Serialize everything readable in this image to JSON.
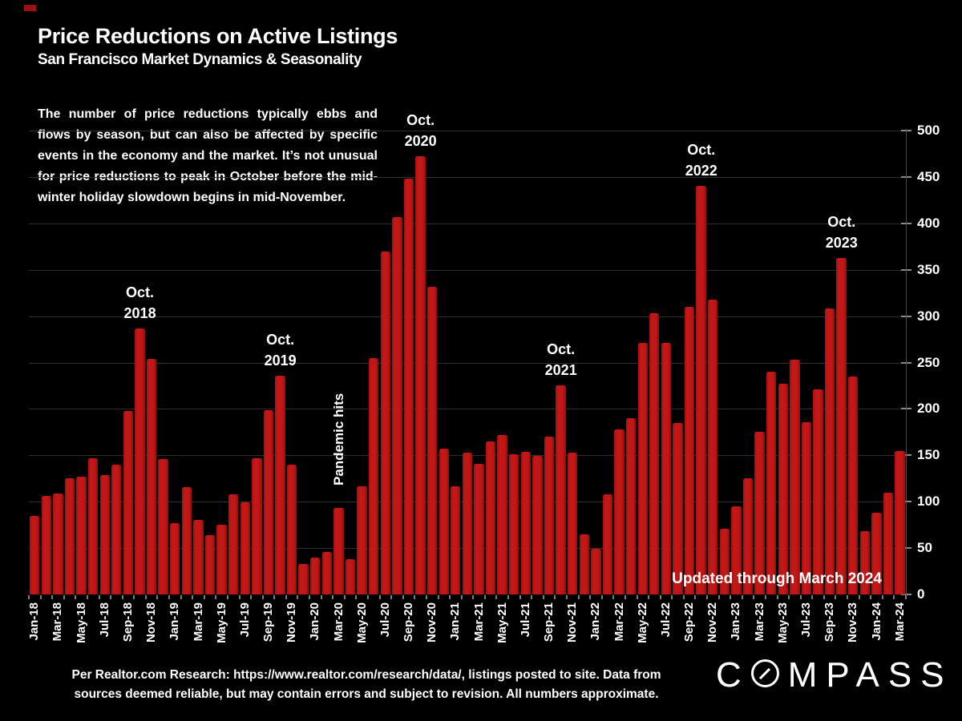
{
  "header": {
    "title": "Price Reductions on Active Listings",
    "subtitle": "San Francisco Market Dynamics & Seasonality"
  },
  "description": "The number of price reductions typically ebbs and flows by season, but can also be affected by specific events in the economy and the market. It’s not unusual for price reductions to peak in October before the mid-winter holiday slowdown begins in mid-November.",
  "chart_data": {
    "type": "bar",
    "title": "Price Reductions on Active Listings",
    "xlabel": "",
    "ylabel": "",
    "ylim": [
      0,
      500
    ],
    "yticks": [
      0,
      50,
      100,
      150,
      200,
      250,
      300,
      350,
      400,
      450,
      500
    ],
    "y_axis_side": "right",
    "grid": true,
    "xtick_every": 2,
    "bar_color": "#c01616",
    "grid_color": "#2f2f2f",
    "x": [
      "Jan-18",
      "Feb-18",
      "Mar-18",
      "Apr-18",
      "May-18",
      "Jun-18",
      "Jul-18",
      "Aug-18",
      "Sep-18",
      "Oct-18",
      "Nov-18",
      "Dec-18",
      "Jan-19",
      "Feb-19",
      "Mar-19",
      "Apr-19",
      "May-19",
      "Jun-19",
      "Jul-19",
      "Aug-19",
      "Sep-19",
      "Oct-19",
      "Nov-19",
      "Dec-19",
      "Jan-20",
      "Feb-20",
      "Mar-20",
      "Apr-20",
      "May-20",
      "Jun-20",
      "Jul-20",
      "Aug-20",
      "Sep-20",
      "Oct-20",
      "Nov-20",
      "Dec-20",
      "Jan-21",
      "Feb-21",
      "Mar-21",
      "Apr-21",
      "May-21",
      "Jun-21",
      "Jul-21",
      "Aug-21",
      "Sep-21",
      "Oct-21",
      "Nov-21",
      "Dec-21",
      "Jan-22",
      "Feb-22",
      "Mar-22",
      "Apr-22",
      "May-22",
      "Jun-22",
      "Jul-22",
      "Aug-22",
      "Sep-22",
      "Oct-22",
      "Nov-22",
      "Dec-22",
      "Jan-23",
      "Feb-23",
      "Mar-23",
      "Apr-23",
      "May-23",
      "Jun-23",
      "Jul-23",
      "Aug-23",
      "Sep-23",
      "Oct-23",
      "Nov-23",
      "Dec-23",
      "Jan-24",
      "Feb-24",
      "Mar-24"
    ],
    "values": [
      85,
      106,
      109,
      125,
      127,
      147,
      129,
      140,
      198,
      287,
      254,
      146,
      77,
      116,
      80,
      64,
      75,
      108,
      99,
      147,
      199,
      236,
      140,
      33,
      40,
      46,
      93,
      38,
      117,
      255,
      370,
      407,
      448,
      472,
      332,
      157,
      117,
      153,
      141,
      165,
      172,
      151,
      154,
      149,
      170,
      225,
      153,
      65,
      49,
      108,
      178,
      190,
      271,
      303,
      271,
      185,
      310,
      440,
      318,
      71,
      95,
      125,
      175,
      240,
      227,
      253,
      186,
      221,
      308,
      363,
      235,
      68,
      88,
      110,
      155
    ],
    "annotations": [
      {
        "month": "Oct-18",
        "lines": [
          "Oct.",
          "2018"
        ]
      },
      {
        "month": "Oct-19",
        "lines": [
          "Oct.",
          "2019"
        ]
      },
      {
        "month": "Oct-20",
        "lines": [
          "Oct.",
          "2020"
        ]
      },
      {
        "month": "Oct-21",
        "lines": [
          "Oct.",
          "2021"
        ]
      },
      {
        "month": "Oct-22",
        "lines": [
          "Oct.",
          "2022"
        ]
      },
      {
        "month": "Oct-23",
        "lines": [
          "Oct.",
          "2023"
        ]
      },
      {
        "month": "Mar-20",
        "lines": [
          "Pandemic hits"
        ],
        "rotated": true
      }
    ],
    "note": "Updated through March 2024"
  },
  "footer": {
    "line1": "Per Realtor.com Research:  https://www.realtor.com/research/data/, listings posted to site. Data from",
    "line2": "sources deemed reliable, but may contain errors and subject to revision. All numbers approximate.",
    "brand": "COMPASS",
    "brand_prefix": "C",
    "brand_suffix": "MPASS"
  }
}
